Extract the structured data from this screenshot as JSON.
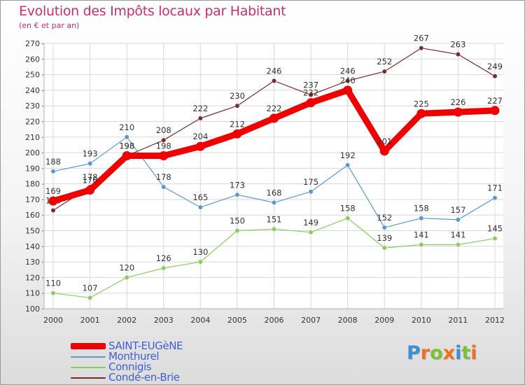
{
  "chart_data": {
    "type": "line",
    "title": "Evolution des Impôts locaux par Habitant",
    "subtitle": "(en € et par an)",
    "xlabel": "",
    "ylabel": "",
    "ylim": [
      100,
      270
    ],
    "y_ticks": [
      100,
      110,
      120,
      130,
      140,
      150,
      160,
      170,
      180,
      190,
      200,
      210,
      220,
      230,
      240,
      250,
      260,
      270
    ],
    "categories": [
      "2000",
      "2001",
      "2002",
      "2003",
      "2004",
      "2005",
      "2006",
      "2007",
      "2008",
      "2009",
      "2010",
      "2011",
      "2012"
    ],
    "grid": true,
    "legend_position": "bottom-left",
    "series": [
      {
        "name": "Condé-en-Brie",
        "color": "#7a2a2e",
        "values": [
          163,
          178,
          198,
          208,
          222,
          230,
          246,
          237,
          246,
          252,
          267,
          263,
          249
        ]
      },
      {
        "name": "Monthurel",
        "color": "#5a98d0",
        "values": [
          188,
          193,
          210,
          178,
          165,
          173,
          168,
          175,
          192,
          152,
          158,
          157,
          171
        ]
      },
      {
        "name": "Connigis",
        "color": "#8ccc5c",
        "values": [
          110,
          107,
          120,
          126,
          130,
          150,
          151,
          149,
          158,
          139,
          141,
          141,
          145
        ]
      },
      {
        "name": "SAINT-EUGèNE",
        "color": "#f00000",
        "values": [
          169,
          176,
          198,
          198,
          204,
          212,
          222,
          232,
          240,
          201,
          225,
          226,
          227
        ]
      }
    ]
  },
  "legend": {
    "items": [
      {
        "label": "SAINT-EUGèNE",
        "color": "#f00000"
      },
      {
        "label": "Monthurel",
        "color": "#5a98d0"
      },
      {
        "label": "Connigis",
        "color": "#8ccc5c"
      },
      {
        "label": "Condé-en-Brie",
        "color": "#7a2a2e"
      }
    ]
  },
  "logo": {
    "text": "Proxiti",
    "letter_colors": [
      "#3b8ed8",
      "#f07020",
      "#7cc038",
      "#f07020",
      "#3b8ed8",
      "#7cc038",
      "#f07020"
    ]
  }
}
